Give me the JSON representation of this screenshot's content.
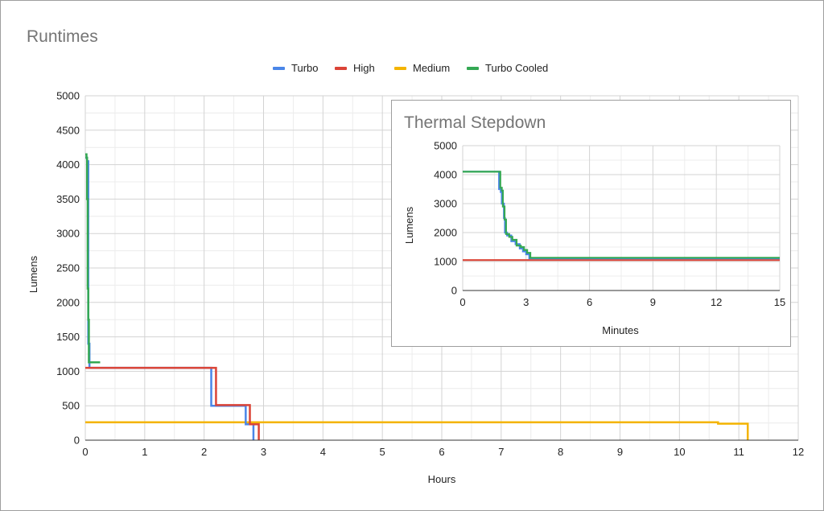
{
  "chart_data": [
    {
      "type": "line",
      "title": "Runtimes",
      "xlabel": "Hours",
      "ylabel": "Lumens",
      "xlim": [
        0,
        12
      ],
      "ylim": [
        0,
        5000
      ],
      "xticks": [
        0,
        1,
        2,
        3,
        4,
        5,
        6,
        7,
        8,
        9,
        10,
        11,
        12
      ],
      "yticks": [
        0,
        500,
        1000,
        1500,
        2000,
        2500,
        3000,
        3500,
        4000,
        4500,
        5000
      ],
      "grid": true,
      "legend_position": "top",
      "series": [
        {
          "name": "Turbo",
          "color": "#4a86e8",
          "step": true,
          "x": [
            0,
            0.03,
            0.05,
            0.07,
            2.12,
            2.12,
            2.7,
            2.7,
            2.83,
            2.83
          ],
          "y": [
            4100,
            4050,
            1400,
            1050,
            1050,
            500,
            500,
            230,
            230,
            0
          ]
        },
        {
          "name": "High",
          "color": "#db4437",
          "step": true,
          "x": [
            0,
            2.2,
            2.2,
            2.77,
            2.77,
            2.92,
            2.92
          ],
          "y": [
            1050,
            1050,
            510,
            510,
            230,
            230,
            0
          ]
        },
        {
          "name": "Medium",
          "color": "#f4b400",
          "step": true,
          "x": [
            0,
            10.65,
            10.65,
            11.15,
            11.15
          ],
          "y": [
            260,
            260,
            240,
            240,
            0
          ]
        },
        {
          "name": "Turbo Cooled",
          "color": "#34a853",
          "step": true,
          "x": [
            0,
            0.02,
            0.03,
            0.04,
            0.05,
            0.06,
            0.25
          ],
          "y": [
            4150,
            4100,
            3500,
            2200,
            1750,
            1130,
            1130
          ]
        }
      ]
    },
    {
      "type": "line",
      "title": "Thermal Stepdown",
      "xlabel": "Minutes",
      "ylabel": "Lumens",
      "xlim": [
        0,
        15
      ],
      "ylim": [
        0,
        5000
      ],
      "xticks": [
        0,
        3,
        6,
        9,
        12,
        15
      ],
      "yticks": [
        0,
        1000,
        2000,
        3000,
        4000,
        5000
      ],
      "grid": true,
      "series": [
        {
          "color": "#4a86e8",
          "step": true,
          "x": [
            0,
            1.7,
            1.72,
            1.8,
            1.85,
            1.95,
            2.0,
            2.1,
            2.3,
            2.5,
            2.7,
            2.85,
            3.0,
            3.15,
            15
          ],
          "y": [
            4100,
            4100,
            3500,
            3400,
            3000,
            2500,
            2000,
            1900,
            1700,
            1600,
            1450,
            1350,
            1250,
            1110,
            1110
          ]
        },
        {
          "color": "#db4437",
          "step": true,
          "x": [
            0,
            15
          ],
          "y": [
            1050,
            1050
          ]
        },
        {
          "color": "#34a853",
          "step": true,
          "x": [
            0,
            1.75,
            1.78,
            1.85,
            1.9,
            1.98,
            2.05,
            2.2,
            2.35,
            2.55,
            2.75,
            2.9,
            3.05,
            3.2,
            15
          ],
          "y": [
            4100,
            4100,
            3550,
            3450,
            2900,
            2450,
            1950,
            1850,
            1750,
            1550,
            1500,
            1400,
            1300,
            1130,
            1130
          ]
        }
      ]
    }
  ]
}
